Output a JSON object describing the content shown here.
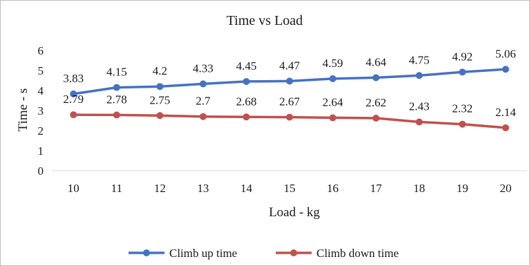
{
  "chart_data": {
    "type": "line",
    "title": "Time vs Load",
    "xlabel": "Load - kg",
    "ylabel": "Time - s",
    "x": [
      10,
      11,
      12,
      13,
      14,
      15,
      16,
      17,
      18,
      19,
      20
    ],
    "ylim": [
      0,
      6
    ],
    "yticks": [
      0,
      1,
      2,
      3,
      4,
      5,
      6
    ],
    "grid": false,
    "legend": "bottom",
    "series": [
      {
        "name": "Climb up time",
        "color": "#4472c4",
        "values": [
          3.83,
          4.15,
          4.2,
          4.33,
          4.45,
          4.47,
          4.59,
          4.64,
          4.75,
          4.92,
          5.06
        ]
      },
      {
        "name": "Climb down time",
        "color": "#c0504d",
        "values": [
          2.79,
          2.78,
          2.75,
          2.7,
          2.68,
          2.67,
          2.64,
          2.62,
          2.43,
          2.32,
          2.14
        ]
      }
    ]
  }
}
